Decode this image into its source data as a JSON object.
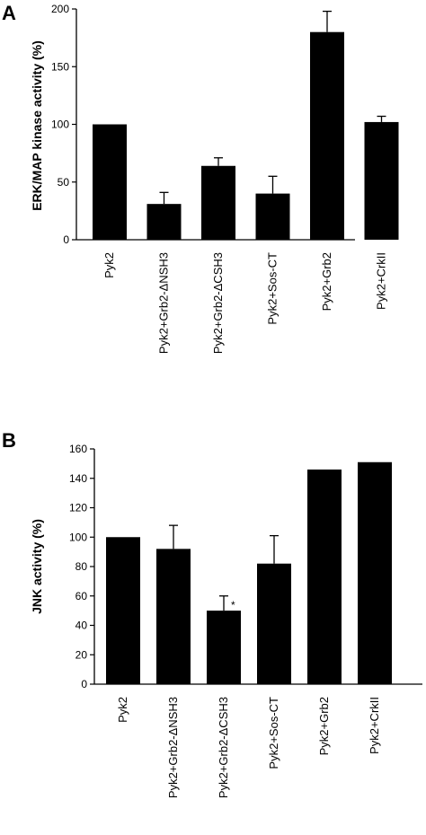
{
  "chart_data": [
    {
      "type": "bar",
      "panel_label": "A",
      "title": "",
      "xlabel": "",
      "ylabel": "ERK/MAP kinase activity (%)",
      "ylim": [
        0,
        200
      ],
      "yticks": [
        0,
        50,
        100,
        150,
        200
      ],
      "categories": [
        "Pyk2",
        "Pyk2+Grb2-ΔNSH3",
        "Pyk2+Grb2-ΔCSH3",
        "Pyk2+Sos-CT",
        "Pyk2+Grb2",
        "Pyk2+CrkII"
      ],
      "values": [
        100,
        31,
        64,
        40,
        180,
        102
      ],
      "errors": [
        0,
        10,
        7,
        15,
        18,
        5
      ],
      "annotations": [
        "",
        "",
        "",
        "",
        "",
        ""
      ],
      "bar_color": "#000000",
      "grid": false
    },
    {
      "type": "bar",
      "panel_label": "B",
      "title": "",
      "xlabel": "",
      "ylabel": "JNK activity (%)",
      "ylim": [
        0,
        160
      ],
      "yticks": [
        0,
        20,
        40,
        60,
        80,
        100,
        120,
        140,
        160
      ],
      "categories": [
        "Pyk2",
        "Pyk2+Grb2-ΔNSH3",
        "Pyk2+Grb2-ΔCSH3",
        "Pyk2+Sos-CT",
        "Pyk2+Grb2",
        "Pyk2+CrkII"
      ],
      "values": [
        100,
        92,
        50,
        82,
        146,
        151
      ],
      "errors": [
        0,
        16,
        10,
        19,
        0,
        0
      ],
      "annotations": [
        "",
        "",
        "*",
        "",
        "",
        ""
      ],
      "bar_color": "#000000",
      "grid": false
    }
  ]
}
